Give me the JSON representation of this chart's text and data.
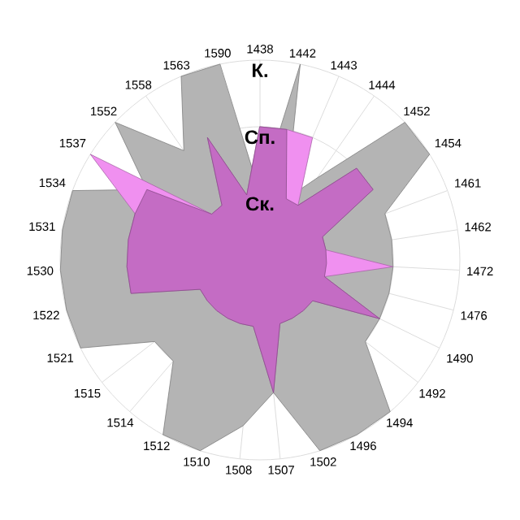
{
  "chart_data": {
    "type": "radar",
    "categories": [
      "1438",
      "1442",
      "1443",
      "1444",
      "1452",
      "1454",
      "1461",
      "1462",
      "1472",
      "1476",
      "1490",
      "1492",
      "1494",
      "1496",
      "1502",
      "1507",
      "1508",
      "1510",
      "1512",
      "1514",
      "1515",
      "1521",
      "1522",
      "1530",
      "1531",
      "1534",
      "1537",
      "1552",
      "1558",
      "1563",
      "1590"
    ],
    "series": [
      {
        "color": "#b4b4b4",
        "values": [
          1,
          3,
          1,
          1.5,
          3,
          3,
          2,
          2,
          2,
          2,
          2,
          2,
          3,
          3,
          3,
          2,
          2.5,
          3,
          3,
          2,
          2,
          3,
          3,
          3,
          3,
          3,
          2,
          3,
          2,
          3,
          3
        ]
      },
      {
        "color": "#f090f0",
        "values": [
          2,
          2,
          2,
          1,
          2,
          2,
          1,
          1,
          2,
          1,
          2,
          1,
          1,
          1,
          1,
          2,
          1,
          1,
          1,
          1,
          1,
          1,
          2,
          2,
          2,
          2,
          3,
          1,
          1,
          2,
          1
        ]
      },
      {
        "color": "#c46cc4",
        "values": [
          2,
          2,
          1,
          1,
          2,
          2,
          1,
          1,
          1,
          1,
          2,
          1,
          1,
          1,
          1,
          2,
          1,
          1,
          1,
          1,
          1,
          1,
          2,
          2,
          2,
          2,
          2,
          1,
          1,
          2,
          1
        ]
      }
    ],
    "ylim": [
      0,
      3
    ],
    "yticks": [
      {
        "value": 1,
        "label": "Ск."
      },
      {
        "value": 2,
        "label": "Сп."
      },
      {
        "value": 3,
        "label": "К."
      }
    ],
    "grid": true
  }
}
